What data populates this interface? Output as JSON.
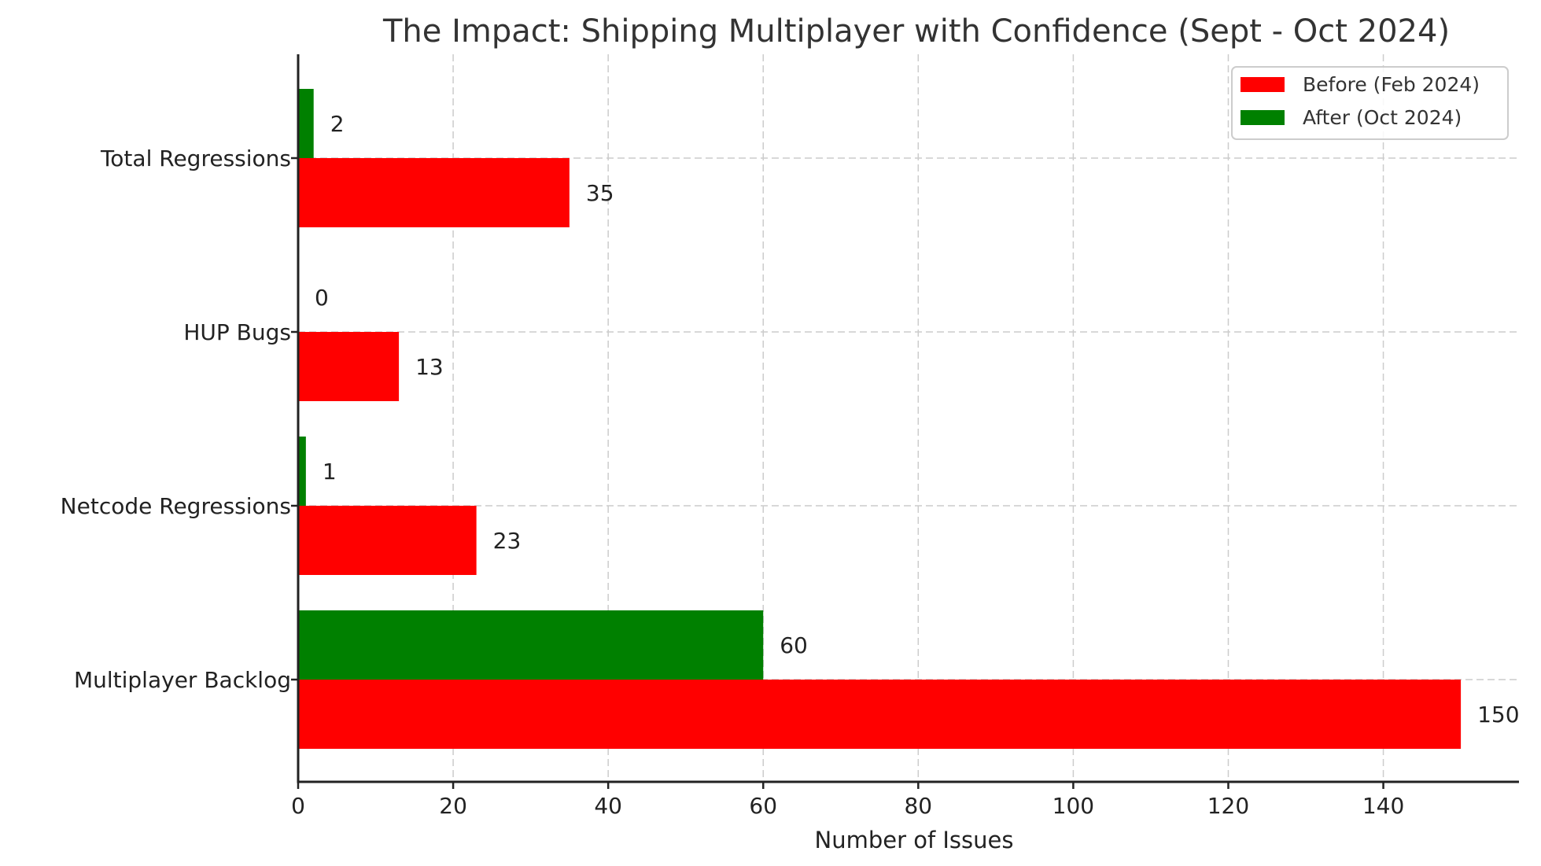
{
  "chart_data": {
    "type": "bar",
    "orientation": "horizontal",
    "title": "The Impact: Shipping Multiplayer with Confidence (Sept - Oct 2024)",
    "xlabel": "Number of Issues",
    "ylabel": "",
    "categories": [
      "Total Regressions",
      "HUP Bugs",
      "Netcode Regressions",
      "Multiplayer Backlog"
    ],
    "series": [
      {
        "name": "Before (Feb 2024)",
        "color": "#ff0000",
        "values": [
          35,
          13,
          23,
          150
        ]
      },
      {
        "name": "After (Oct 2024)",
        "color": "#008000",
        "values": [
          2,
          0,
          1,
          60
        ]
      }
    ],
    "xlim": [
      0,
      157.5
    ],
    "xticks": [
      0,
      20,
      40,
      60,
      80,
      100,
      120,
      140
    ],
    "grid": true,
    "legend_position": "upper right",
    "data_labels": true
  }
}
